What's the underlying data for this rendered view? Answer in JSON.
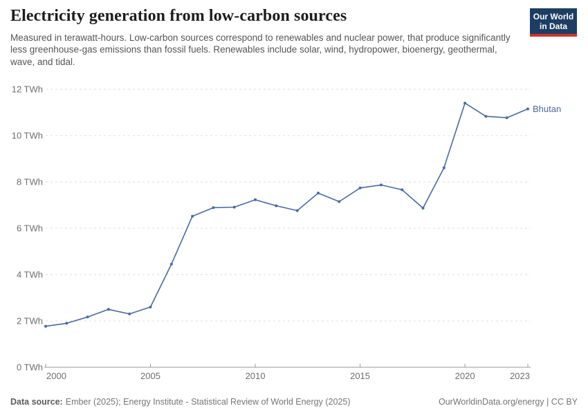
{
  "header": {
    "title": "Electricity generation from low-carbon sources",
    "subtitle": "Measured in terawatt-hours. Low-carbon sources correspond to renewables and nuclear power, that produce significantly less greenhouse-gas emissions than fossil fuels. Renewables include solar, wind, hydropower, bioenergy, geothermal, wave, and tidal.",
    "logo": {
      "line1": "Our World",
      "line2": "in Data"
    }
  },
  "chart_data": {
    "type": "line",
    "title": "Electricity generation from low-carbon sources",
    "xlabel": "",
    "ylabel": "",
    "unit": "TWh",
    "x": [
      2000,
      2001,
      2002,
      2003,
      2004,
      2005,
      2006,
      2007,
      2008,
      2009,
      2010,
      2011,
      2012,
      2013,
      2014,
      2015,
      2016,
      2017,
      2018,
      2019,
      2020,
      2021,
      2022,
      2023
    ],
    "series": [
      {
        "name": "Bhutan",
        "color": "#4a69a2",
        "values": [
          1.77,
          1.9,
          2.17,
          2.5,
          2.3,
          2.6,
          4.45,
          6.52,
          6.89,
          6.91,
          7.23,
          6.97,
          6.76,
          7.52,
          7.15,
          7.74,
          7.87,
          7.66,
          6.87,
          8.61,
          11.4,
          10.83,
          10.77,
          11.15
        ]
      }
    ],
    "ylim": [
      0,
      12
    ],
    "xlim": [
      2000,
      2023
    ],
    "y_ticks": [
      0,
      2,
      4,
      6,
      8,
      10,
      12
    ],
    "y_tick_suffix": " TWh",
    "x_ticks": [
      2000,
      2005,
      2010,
      2015,
      2020,
      2023
    ],
    "grid": "dashed horizontal",
    "legend_position": "end-of-line label"
  },
  "footer": {
    "datasource_label": "Data source:",
    "datasource_text": "Ember (2025); Energy Institute - Statistical Review of World Energy (2025)",
    "link_text": "OurWorldinData.org/energy | CC BY"
  },
  "colors": {
    "line": "#4a69a2",
    "grid": "#dcdcdc",
    "axis": "#999999",
    "tick_text": "#6e6e6e",
    "title_text": "#1d1d1d",
    "subtitle_text": "#555555",
    "footer_text": "#757575",
    "logo_bg": "#1d3d63",
    "logo_red": "#d0342c"
  }
}
